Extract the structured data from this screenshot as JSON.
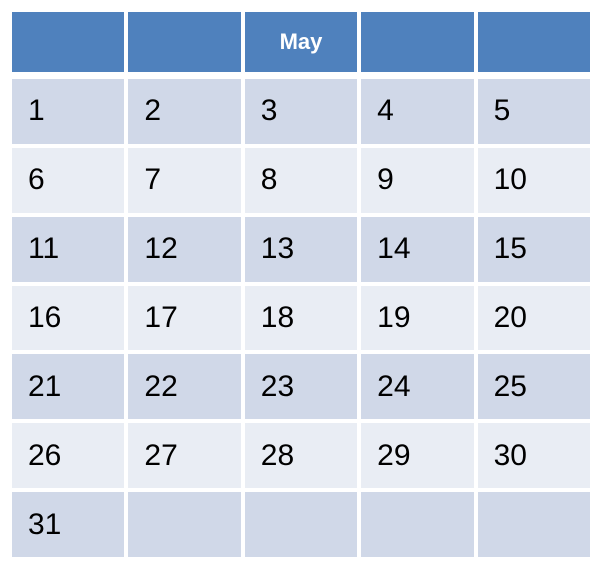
{
  "calendar": {
    "month": "May",
    "header_cells": [
      "",
      "",
      "May",
      "",
      ""
    ],
    "weeks": [
      [
        "1",
        "2",
        "3",
        "4",
        "5"
      ],
      [
        "6",
        "7",
        "8",
        "9",
        "10"
      ],
      [
        "11",
        "12",
        "13",
        "14",
        "15"
      ],
      [
        "16",
        "17",
        "18",
        "19",
        "20"
      ],
      [
        "21",
        "22",
        "23",
        "24",
        "25"
      ],
      [
        "26",
        "27",
        "28",
        "29",
        "30"
      ],
      [
        "31",
        "",
        "",
        "",
        ""
      ]
    ]
  },
  "colors": {
    "header": "#4f81bd",
    "row_band_dark": "#d0d8e8",
    "row_band_light": "#e9edf4",
    "header_text": "#ffffff",
    "day_text": "#000000"
  }
}
